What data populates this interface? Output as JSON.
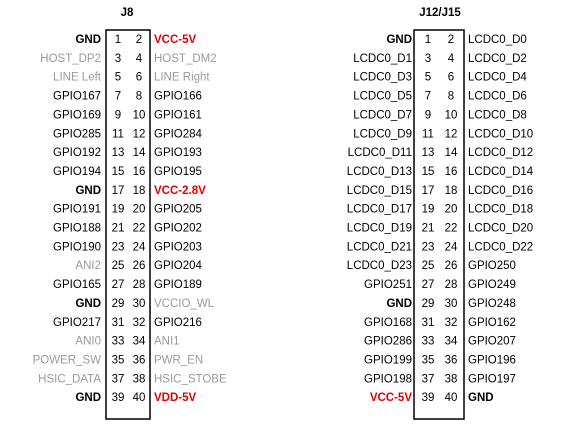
{
  "headers": [
    {
      "title": "J8",
      "rows": [
        [
          {
            "pin": 1,
            "label": "GND",
            "bold": true
          },
          {
            "pin": 2,
            "label": "VCC-5V",
            "bold": true,
            "color": "#e00000"
          }
        ],
        [
          {
            "pin": 3,
            "label": "HOST_DP2",
            "color": "#9a9a9a"
          },
          {
            "pin": 4,
            "label": "HOST_DM2",
            "color": "#9a9a9a"
          }
        ],
        [
          {
            "pin": 5,
            "label": "LINE Left",
            "color": "#9a9a9a"
          },
          {
            "pin": 6,
            "label": "LINE Right",
            "color": "#9a9a9a"
          }
        ],
        [
          {
            "pin": 7,
            "label": "GPIO167"
          },
          {
            "pin": 8,
            "label": "GPIO166"
          }
        ],
        [
          {
            "pin": 9,
            "label": "GPIO169"
          },
          {
            "pin": 10,
            "label": "GPIO161"
          }
        ],
        [
          {
            "pin": 11,
            "label": "GPIO285"
          },
          {
            "pin": 12,
            "label": "GPIO284"
          }
        ],
        [
          {
            "pin": 13,
            "label": "GPIO192"
          },
          {
            "pin": 14,
            "label": "GPIO193"
          }
        ],
        [
          {
            "pin": 15,
            "label": "GPIO194"
          },
          {
            "pin": 16,
            "label": "GPIO195"
          }
        ],
        [
          {
            "pin": 17,
            "label": "GND",
            "bold": true
          },
          {
            "pin": 18,
            "label": "VCC-2.8V",
            "bold": true,
            "color": "#e00000"
          }
        ],
        [
          {
            "pin": 19,
            "label": "GPIO191"
          },
          {
            "pin": 20,
            "label": "GPIO205"
          }
        ],
        [
          {
            "pin": 21,
            "label": "GPIO188"
          },
          {
            "pin": 22,
            "label": "GPIO202"
          }
        ],
        [
          {
            "pin": 23,
            "label": "GPIO190"
          },
          {
            "pin": 24,
            "label": "GPIO203"
          }
        ],
        [
          {
            "pin": 25,
            "label": "ANI2",
            "color": "#9a9a9a"
          },
          {
            "pin": 26,
            "label": "GPIO204"
          }
        ],
        [
          {
            "pin": 27,
            "label": "GPIO165"
          },
          {
            "pin": 28,
            "label": "GPIO189"
          }
        ],
        [
          {
            "pin": 29,
            "label": "GND",
            "bold": true
          },
          {
            "pin": 30,
            "label": "VCCIO_WL",
            "color": "#9a9a9a"
          }
        ],
        [
          {
            "pin": 31,
            "label": "GPIO217"
          },
          {
            "pin": 32,
            "label": "GPIO216"
          }
        ],
        [
          {
            "pin": 33,
            "label": "ANI0",
            "color": "#9a9a9a"
          },
          {
            "pin": 34,
            "label": "ANI1",
            "color": "#9a9a9a"
          }
        ],
        [
          {
            "pin": 35,
            "label": "POWER_SW",
            "color": "#9a9a9a"
          },
          {
            "pin": 36,
            "label": "PWR_EN",
            "color": "#9a9a9a"
          }
        ],
        [
          {
            "pin": 37,
            "label": "HSIC_DATA",
            "color": "#9a9a9a"
          },
          {
            "pin": 38,
            "label": "HSIC_STOBE",
            "color": "#9a9a9a"
          }
        ],
        [
          {
            "pin": 39,
            "label": "GND",
            "bold": true
          },
          {
            "pin": 40,
            "label": "VDD-5V",
            "bold": true,
            "color": "#e00000"
          }
        ]
      ]
    },
    {
      "title": "J12/J15",
      "rows": [
        [
          {
            "pin": 1,
            "label": "GND",
            "bold": true
          },
          {
            "pin": 2,
            "label": "LCDC0_D0"
          }
        ],
        [
          {
            "pin": 3,
            "label": "LCDC0_D1"
          },
          {
            "pin": 4,
            "label": "LCDC0_D2"
          }
        ],
        [
          {
            "pin": 5,
            "label": "LCDC0_D3"
          },
          {
            "pin": 6,
            "label": "LCDC0_D4"
          }
        ],
        [
          {
            "pin": 7,
            "label": "LCDC0_D5"
          },
          {
            "pin": 8,
            "label": "LCDC0_D6"
          }
        ],
        [
          {
            "pin": 9,
            "label": "LCDC0_D7"
          },
          {
            "pin": 10,
            "label": "LCDC0_D8"
          }
        ],
        [
          {
            "pin": 11,
            "label": "LCDC0_D9"
          },
          {
            "pin": 12,
            "label": "LCDC0_D10"
          }
        ],
        [
          {
            "pin": 13,
            "label": "LCDC0_D11"
          },
          {
            "pin": 14,
            "label": "LCDC0_D12"
          }
        ],
        [
          {
            "pin": 15,
            "label": "LCDC0_D13"
          },
          {
            "pin": 16,
            "label": "LCDC0_D14"
          }
        ],
        [
          {
            "pin": 17,
            "label": "LCDC0_D15"
          },
          {
            "pin": 18,
            "label": "LCDC0_D16"
          }
        ],
        [
          {
            "pin": 19,
            "label": "LCDC0_D17"
          },
          {
            "pin": 20,
            "label": "LCDC0_D18"
          }
        ],
        [
          {
            "pin": 21,
            "label": "LCDC0_D19"
          },
          {
            "pin": 22,
            "label": "LCDC0_D20"
          }
        ],
        [
          {
            "pin": 23,
            "label": "LCDC0_D21"
          },
          {
            "pin": 24,
            "label": "LCDC0_D22"
          }
        ],
        [
          {
            "pin": 25,
            "label": "LCDC0_D23"
          },
          {
            "pin": 26,
            "label": "GPIO250"
          }
        ],
        [
          {
            "pin": 27,
            "label": "GPIO251"
          },
          {
            "pin": 28,
            "label": "GPIO249"
          }
        ],
        [
          {
            "pin": 29,
            "label": "GND",
            "bold": true
          },
          {
            "pin": 30,
            "label": "GPIO248"
          }
        ],
        [
          {
            "pin": 31,
            "label": "GPIO168"
          },
          {
            "pin": 32,
            "label": "GPIO162"
          }
        ],
        [
          {
            "pin": 33,
            "label": "GPIO286"
          },
          {
            "pin": 34,
            "label": "GPIO207"
          }
        ],
        [
          {
            "pin": 35,
            "label": "GPIO199"
          },
          {
            "pin": 36,
            "label": "GPIO196"
          }
        ],
        [
          {
            "pin": 37,
            "label": "GPIO198"
          },
          {
            "pin": 38,
            "label": "GPIO197"
          }
        ],
        [
          {
            "pin": 39,
            "label": "VCC-5V",
            "bold": true,
            "color": "#e00000"
          },
          {
            "pin": 40,
            "label": "GND",
            "bold": true
          }
        ]
      ]
    }
  ]
}
